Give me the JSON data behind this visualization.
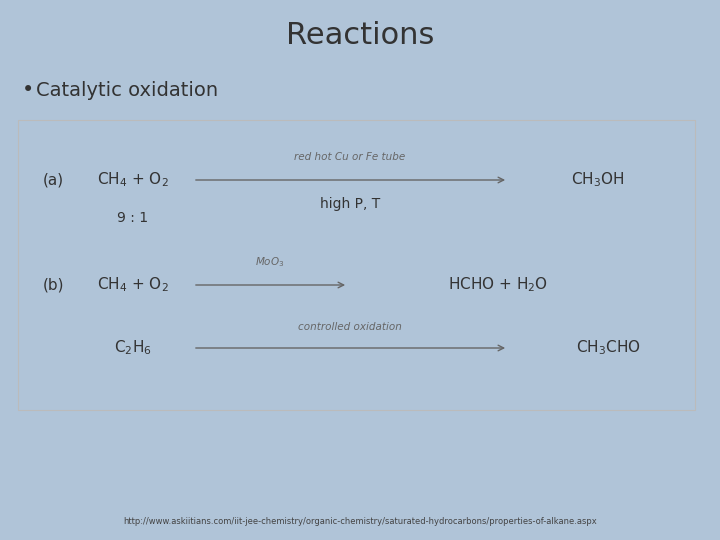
{
  "title": "Reactions",
  "bullet": "Catalytic oxidation",
  "bg_color": "#b0c4d8",
  "box_bg": "#ffffff",
  "title_fontsize": 22,
  "bullet_fontsize": 14,
  "reaction_fontsize": 11,
  "small_fontsize": 7.5,
  "label_fontsize": 11,
  "url": "http://www.askiitians.com/iit-jee-chemistry/organic-chemistry/saturated-hydrocarbons/properties-of-alkane.aspx",
  "url_fontsize": 6,
  "reaction_a_left": "CH$_4$ + O$_2$",
  "reaction_a_above": "red hot Cu or Fe tube",
  "reaction_a_below": "high P, T",
  "reaction_a_right": "CH$_3$OH",
  "reaction_a_ratio": "9 : 1",
  "reaction_b1_left": "CH$_4$ + O$_2$",
  "reaction_b1_above": "MoO$_3$",
  "reaction_b1_right": "HCHO + H$_2$O",
  "reaction_b2_left": "C$_2$H$_6$",
  "reaction_b2_above": "controlled oxidation",
  "reaction_b2_right": "CH$_3$CHO",
  "label_a": "(a)",
  "label_b": "(b)",
  "text_color": "#333333",
  "gray_color": "#666666"
}
